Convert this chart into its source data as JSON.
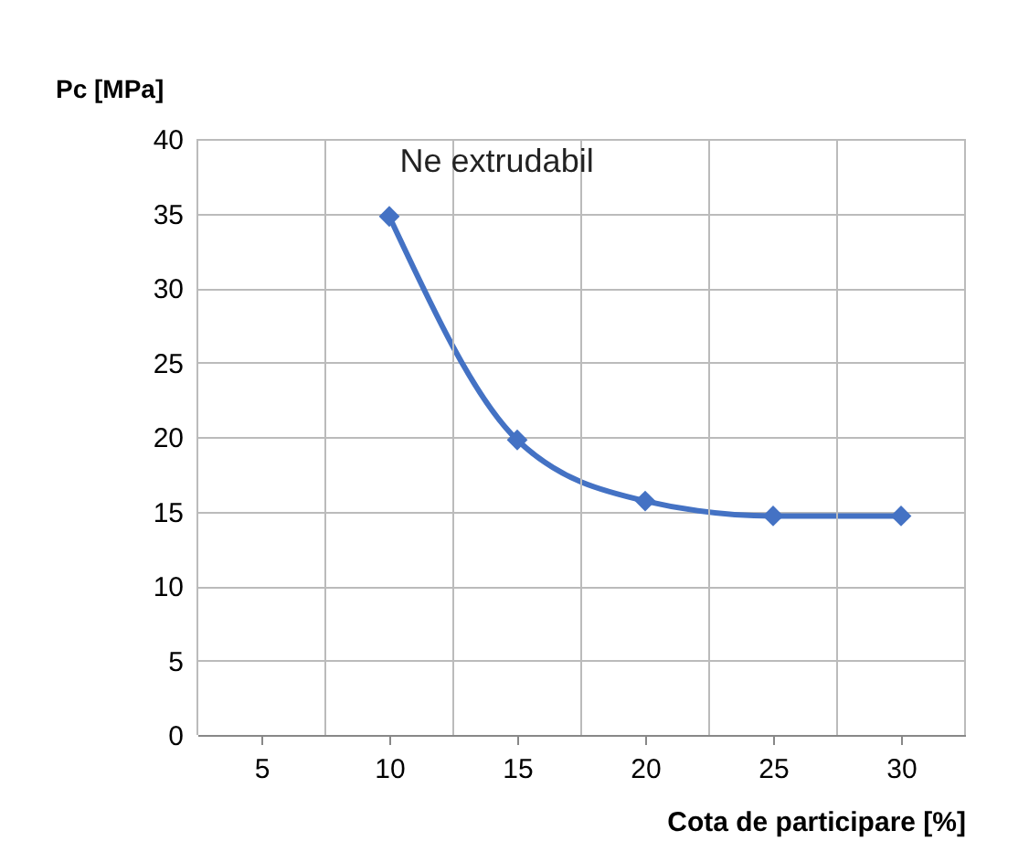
{
  "chart_data": {
    "type": "line",
    "xlabel": "Cota  de participare [%]",
    "ylabel": "Pc [MPa]",
    "categories": [
      "5",
      "10",
      "15",
      "20",
      "25",
      "30"
    ],
    "series": [
      {
        "color": "#4472c4",
        "values": [
          null,
          34.8,
          19.8,
          15.7,
          14.7,
          14.7
        ]
      }
    ],
    "ylim": [
      0,
      40
    ],
    "yticks": [
      0,
      5,
      10,
      15,
      20,
      25,
      30,
      35,
      40
    ],
    "grid": true,
    "marker": "diamond",
    "line_style": "solid",
    "annotations": [
      "Ne extrudabil"
    ]
  }
}
